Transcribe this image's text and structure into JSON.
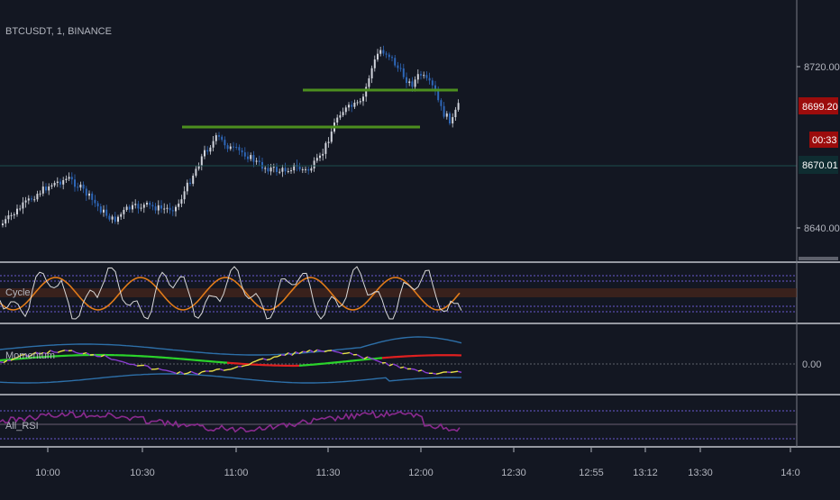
{
  "symbol_title": "BTCUSDT, 1, BINANCE",
  "colors": {
    "background": "#131722",
    "up_candle": "#d1d4dc",
    "down_candle": "#2e67b8",
    "support_line": "#4c8f1f",
    "price_tag": "#9c0c0c",
    "last_tag": "#0f2d31",
    "cycle_fast": "#d8d8d8",
    "cycle_slow": "#e07b1a",
    "cycle_band": "#7a3a1a",
    "momentum_green": "#2bd42b",
    "momentum_red": "#e02020",
    "momentum_purple": "#8b3fd1",
    "momentum_yellow": "#e8e14a",
    "momentum_band": "#2d6fa8",
    "rsi": "#8a2a8f",
    "pane_border": "#9598a1"
  },
  "price_scale": {
    "ticks": [
      "8720.00",
      "8640.00"
    ],
    "current_price": "8699.20",
    "countdown": "00:33",
    "last_value": "8670.01"
  },
  "horizontal_lines": {
    "upper_level": "8712",
    "lower_level": "8691"
  },
  "panes": {
    "cycle": {
      "name": "Cycle"
    },
    "momentum": {
      "name": "Momentum",
      "scale_label": "0.00"
    },
    "rsi": {
      "name": "All_RSI"
    }
  },
  "time_axis": [
    "10:00",
    "10:30",
    "11:00",
    "11:30",
    "12:00",
    "12:30",
    "12:55",
    "13:12",
    "13:30",
    "14:0"
  ]
}
